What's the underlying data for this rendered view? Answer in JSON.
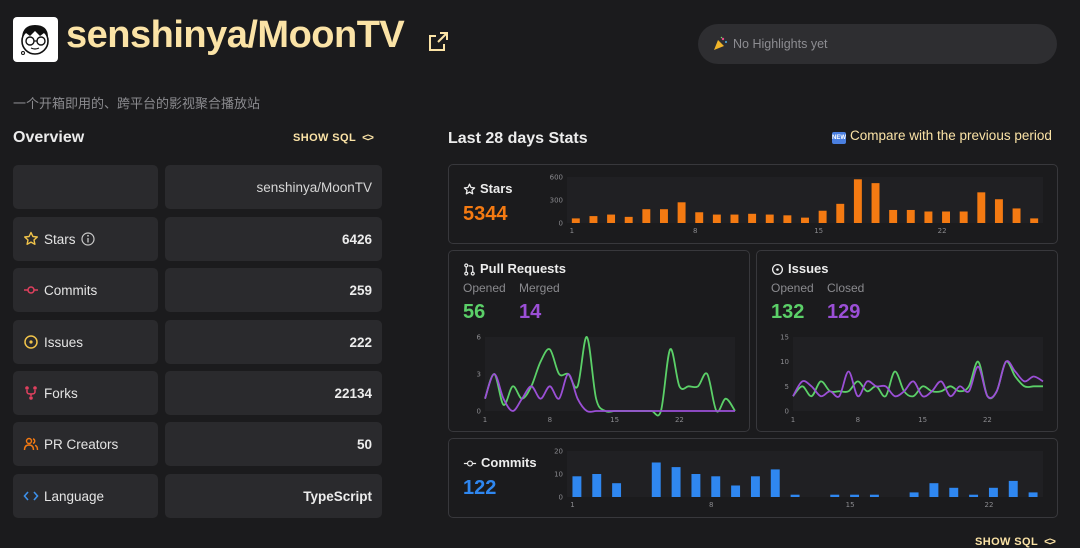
{
  "header": {
    "repo_name": "senshinya/MoonTV",
    "description": "一个开箱即用的、跨平台的影视聚合播放站",
    "highlights_text": "No Highlights yet"
  },
  "overview": {
    "title": "Overview",
    "show_sql_label": "SHOW SQL",
    "repo_cell": "senshinya/MoonTV",
    "rows": [
      {
        "label": "Stars",
        "value": "6426",
        "icon": "star-icon"
      },
      {
        "label": "Commits",
        "value": "259",
        "icon": "commit-icon"
      },
      {
        "label": "Issues",
        "value": "222",
        "icon": "issue-icon"
      },
      {
        "label": "Forks",
        "value": "22134",
        "icon": "fork-icon"
      },
      {
        "label": "PR Creators",
        "value": "50",
        "icon": "people-icon"
      },
      {
        "label": "Language",
        "value": "TypeScript",
        "icon": "code-icon"
      }
    ]
  },
  "stats": {
    "title": "Last 28 days Stats",
    "compare_label": "Compare with the previous period",
    "new_badge": "NEW",
    "bottom_show_sql": "SHOW SQL",
    "stars": {
      "title": "Stars",
      "total": "5344"
    },
    "pull_requests": {
      "title": "Pull Requests",
      "opened_label": "Opened",
      "merged_label": "Merged",
      "opened": "56",
      "merged": "14"
    },
    "issues": {
      "title": "Issues",
      "opened_label": "Opened",
      "closed_label": "Closed",
      "opened": "132",
      "closed": "129"
    },
    "commits": {
      "title": "Commits",
      "total": "122"
    }
  },
  "colors": {
    "accent": "#fbe3a6",
    "stars": "#f47a12",
    "green": "#5bd068",
    "purple": "#9b4fd6",
    "blue": "#2f87f0"
  },
  "chart_data": [
    {
      "type": "bar",
      "series": [
        {
          "name": "Stars",
          "values": [
            60,
            90,
            110,
            80,
            180,
            180,
            270,
            140,
            110,
            110,
            120,
            110,
            100,
            70,
            160,
            250,
            570,
            520,
            170,
            170,
            150,
            150,
            150,
            400,
            310,
            190,
            60
          ]
        }
      ],
      "x": [
        1,
        2,
        3,
        4,
        5,
        6,
        7,
        8,
        9,
        10,
        11,
        12,
        13,
        14,
        15,
        16,
        17,
        18,
        19,
        20,
        21,
        22,
        23,
        24,
        25,
        26,
        27
      ],
      "x_ticks": [
        1,
        8,
        15,
        22
      ],
      "y_ticks": [
        0,
        300,
        600
      ],
      "ylim": [
        0,
        600
      ],
      "color": "#f47a12"
    },
    {
      "type": "line",
      "x": [
        1,
        2,
        3,
        4,
        5,
        6,
        7,
        8,
        9,
        10,
        11,
        12,
        13,
        14,
        15,
        16,
        17,
        18,
        19,
        20,
        21,
        22,
        23,
        24,
        25,
        26,
        27,
        28
      ],
      "series": [
        {
          "name": "Opened",
          "color": "#5bd068",
          "values": [
            1,
            3,
            0.5,
            2,
            1,
            2,
            4,
            5,
            3,
            3,
            2,
            6,
            1,
            0,
            0,
            0,
            0,
            0,
            0,
            0,
            5,
            2,
            2,
            2,
            3,
            0,
            1,
            0
          ]
        },
        {
          "name": "Merged",
          "color": "#9b4fd6",
          "values": [
            1,
            3,
            1,
            0,
            1,
            2,
            1,
            2,
            1,
            3,
            1,
            0,
            0,
            0,
            0,
            0,
            0,
            0,
            0,
            0,
            0,
            0,
            0,
            0,
            0,
            0,
            0,
            0
          ]
        }
      ],
      "x_ticks": [
        1,
        8,
        15,
        22
      ],
      "y_ticks": [
        0,
        3,
        6
      ],
      "ylim": [
        0,
        6
      ]
    },
    {
      "type": "line",
      "x": [
        1,
        2,
        3,
        4,
        5,
        6,
        7,
        8,
        9,
        10,
        11,
        12,
        13,
        14,
        15,
        16,
        17,
        18,
        19,
        20,
        21,
        22,
        23,
        24,
        25,
        26,
        27,
        28
      ],
      "series": [
        {
          "name": "Opened",
          "color": "#5bd068",
          "values": [
            3,
            5,
            3,
            6,
            4,
            4,
            4,
            6,
            4,
            5,
            3,
            8,
            4,
            3,
            5,
            4,
            4,
            5,
            4,
            5,
            10,
            3,
            4,
            10,
            7,
            5,
            5,
            5
          ]
        },
        {
          "name": "Closed",
          "color": "#9b4fd6",
          "values": [
            3,
            6,
            5,
            3,
            4,
            3,
            8,
            3,
            6,
            5,
            5,
            3,
            4,
            6,
            3,
            4,
            6,
            3,
            5,
            4,
            9,
            3,
            4,
            10,
            8,
            6,
            7,
            6
          ]
        }
      ],
      "x_ticks": [
        1,
        8,
        15,
        22
      ],
      "y_ticks": [
        0,
        5,
        10,
        15
      ],
      "ylim": [
        0,
        15
      ]
    },
    {
      "type": "bar",
      "series": [
        {
          "name": "Commits",
          "values": [
            9,
            10,
            6,
            0,
            15,
            13,
            10,
            9,
            5,
            9,
            12,
            1,
            0,
            1,
            1,
            1,
            0,
            2,
            6,
            4,
            1,
            4,
            7,
            2
          ]
        }
      ],
      "x": [
        1,
        2,
        3,
        4,
        5,
        6,
        7,
        8,
        9,
        10,
        11,
        12,
        13,
        14,
        15,
        16,
        17,
        18,
        19,
        20,
        21,
        22,
        23,
        24
      ],
      "x_ticks": [
        1,
        8,
        15,
        22
      ],
      "y_ticks": [
        0,
        10,
        20
      ],
      "ylim": [
        0,
        20
      ],
      "color": "#2f87f0"
    }
  ]
}
